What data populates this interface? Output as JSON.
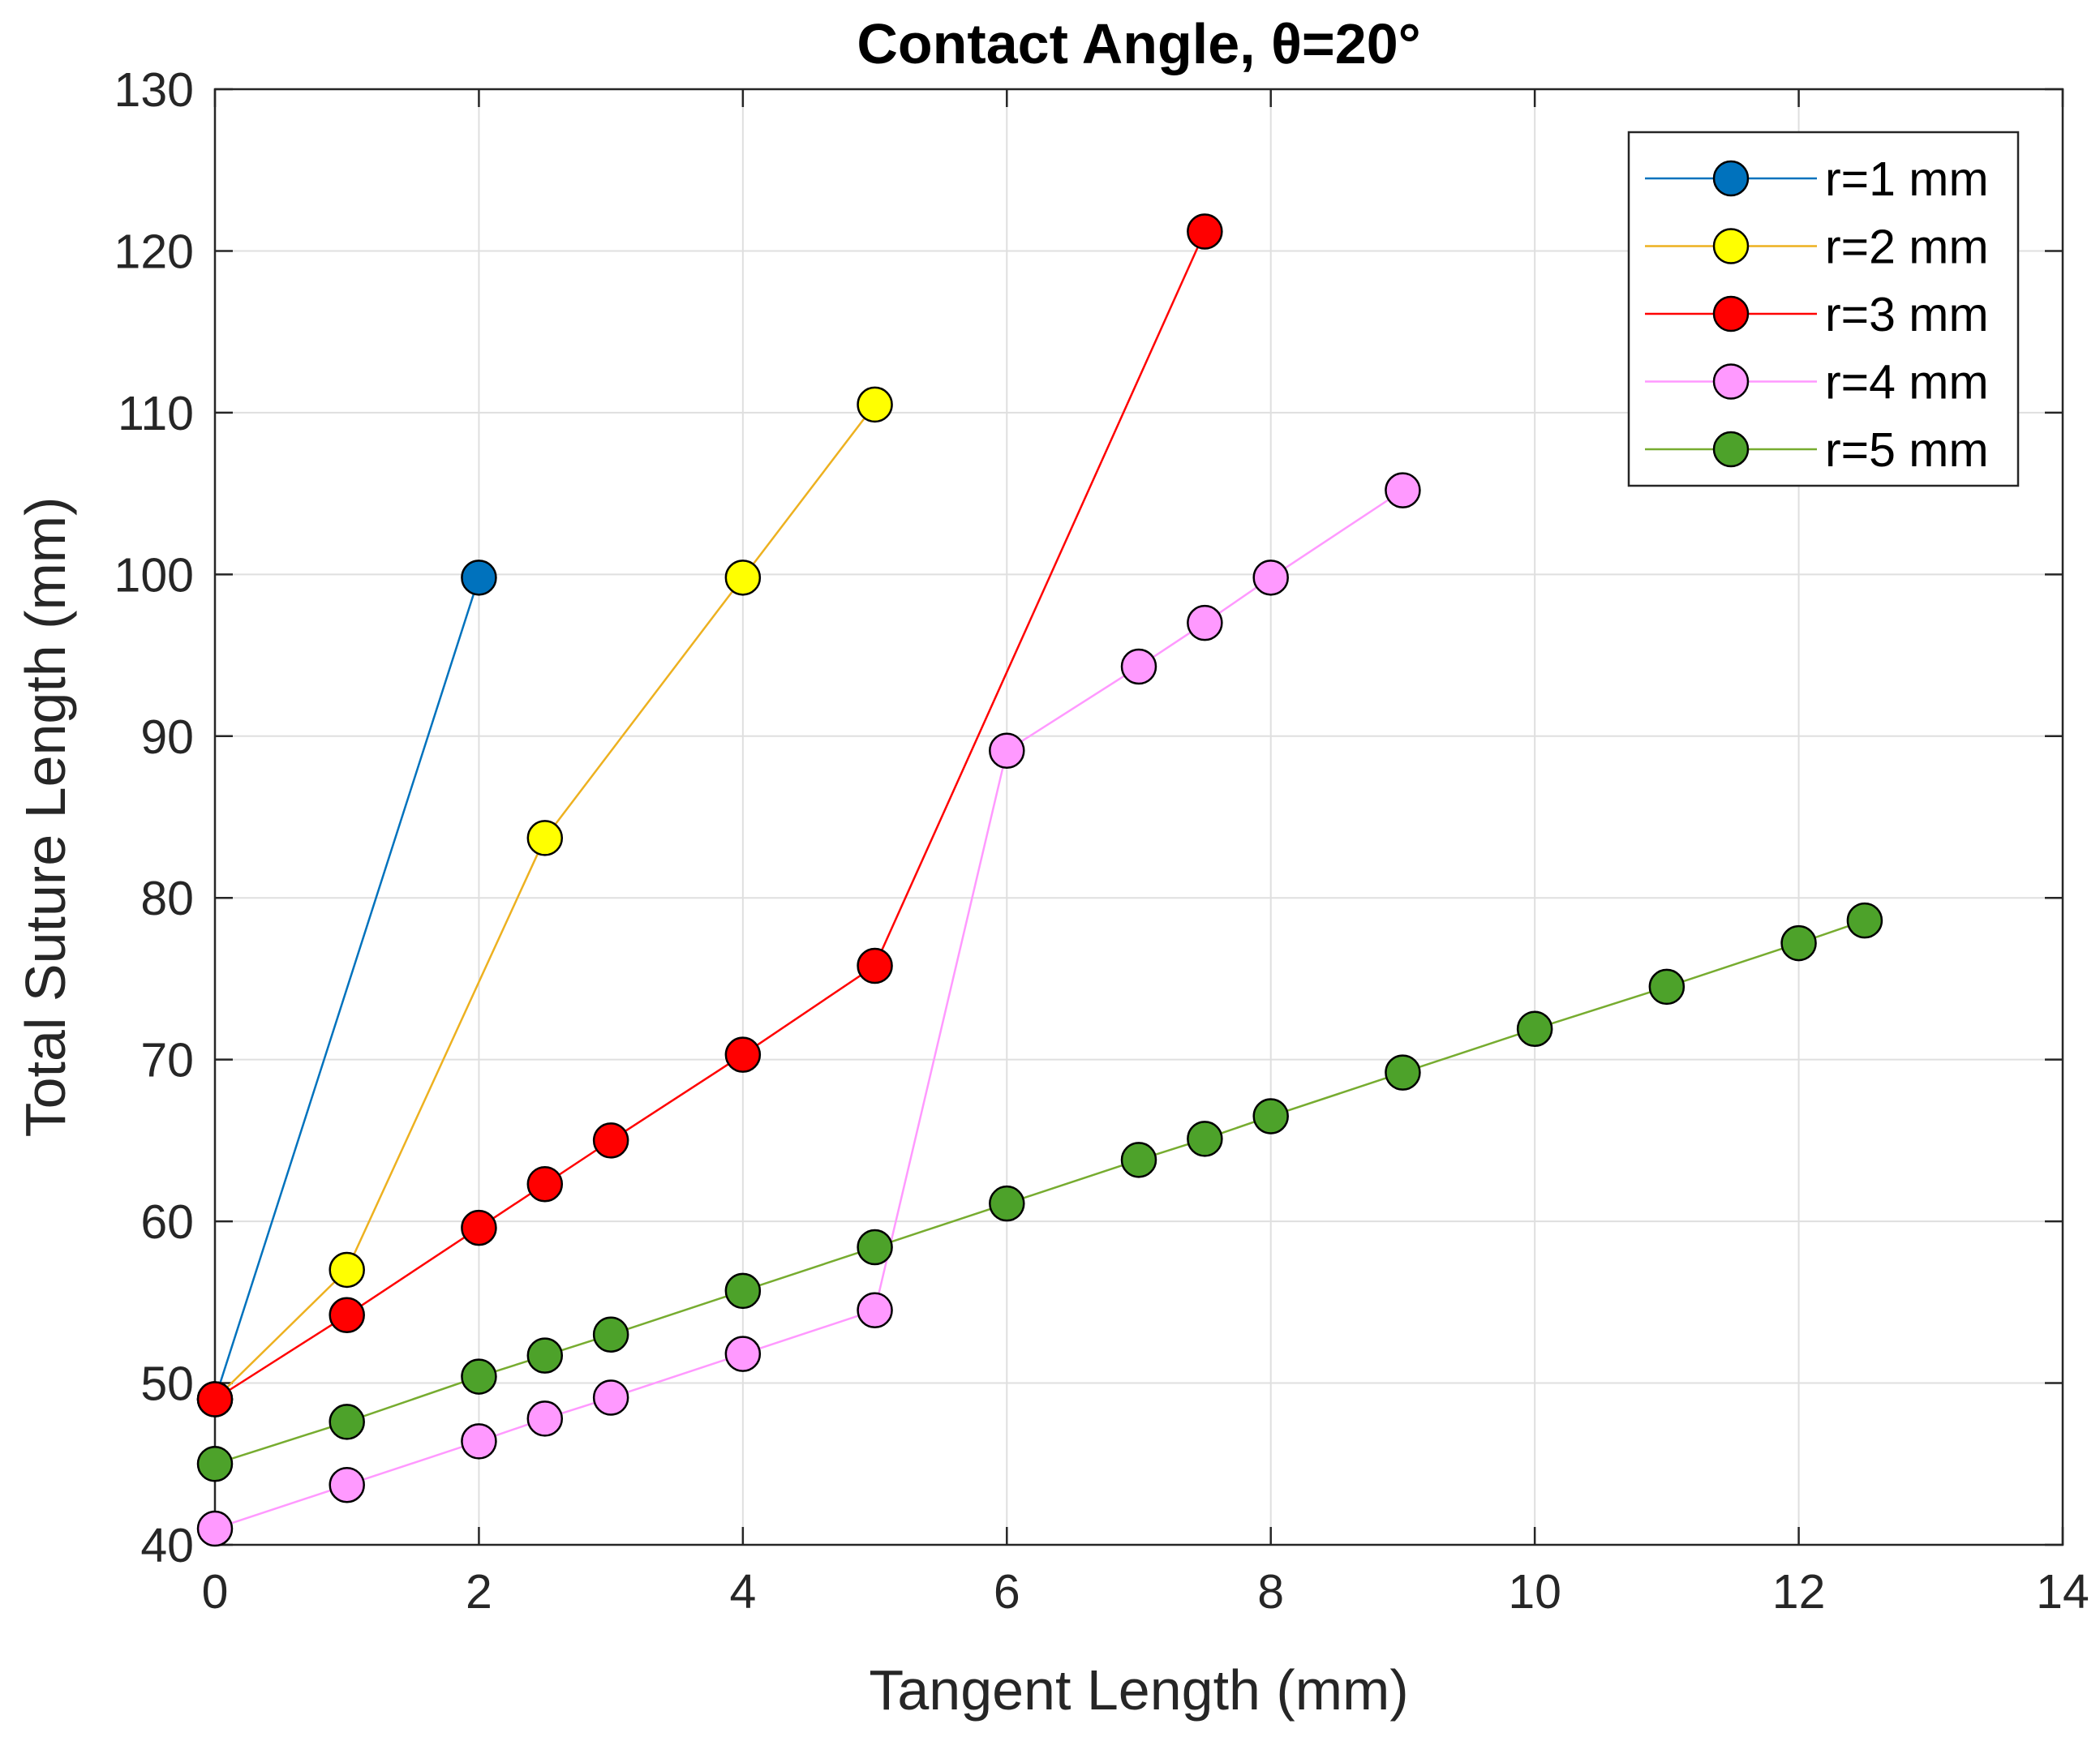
{
  "chart_data": {
    "type": "line",
    "title": "Contact Angle, θ=20°",
    "xlabel": "Tangent Length (mm)",
    "ylabel": "Total Suture Length (mm)",
    "xlim": [
      0,
      14
    ],
    "ylim": [
      40,
      130
    ],
    "xticks": [
      "0",
      "2",
      "4",
      "6",
      "8",
      "10",
      "12",
      "14"
    ],
    "yticks": [
      "40",
      "50",
      "60",
      "70",
      "80",
      "90",
      "100",
      "110",
      "120",
      "130"
    ],
    "grid": true,
    "legend_position": "top-right",
    "series": [
      {
        "name": "r=1 mm",
        "line_color": "#0072BD",
        "marker_color": "#0072BD",
        "x": [
          0,
          2
        ],
        "y": [
          49,
          99.8
        ]
      },
      {
        "name": "r=2 mm",
        "line_color": "#EDB120",
        "marker_color": "#FFFF00",
        "x": [
          0,
          1,
          2.5,
          4,
          5
        ],
        "y": [
          49,
          57,
          83.7,
          99.8,
          110.5
        ]
      },
      {
        "name": "r=3 mm",
        "line_color": "#FF0000",
        "marker_color": "#FF0000",
        "x": [
          0,
          1,
          2,
          2.5,
          3,
          4,
          5,
          7.5
        ],
        "y": [
          49,
          54.2,
          59.6,
          62.3,
          65,
          70.3,
          75.8,
          121.2
        ]
      },
      {
        "name": "r=4 mm",
        "line_color": "#FF99FF",
        "marker_color": "#FF99FF",
        "x": [
          0,
          1,
          2,
          2.5,
          3,
          4,
          5,
          6,
          7,
          7.5,
          8,
          9
        ],
        "y": [
          41,
          43.7,
          46.4,
          47.8,
          49.1,
          51.8,
          54.5,
          89.1,
          94.3,
          97,
          99.8,
          105.2
        ]
      },
      {
        "name": "r=5 mm",
        "line_color": "#77AC30",
        "marker_color": "#4DA22A",
        "x": [
          0,
          1,
          2,
          2.5,
          3,
          4,
          5,
          6,
          7,
          7.5,
          8,
          9,
          10,
          11,
          12,
          12.5
        ],
        "y": [
          45,
          47.6,
          50.4,
          51.7,
          53,
          55.7,
          58.4,
          61.1,
          63.8,
          65.1,
          66.5,
          69.2,
          71.9,
          74.5,
          77.2,
          78.6
        ]
      }
    ]
  }
}
